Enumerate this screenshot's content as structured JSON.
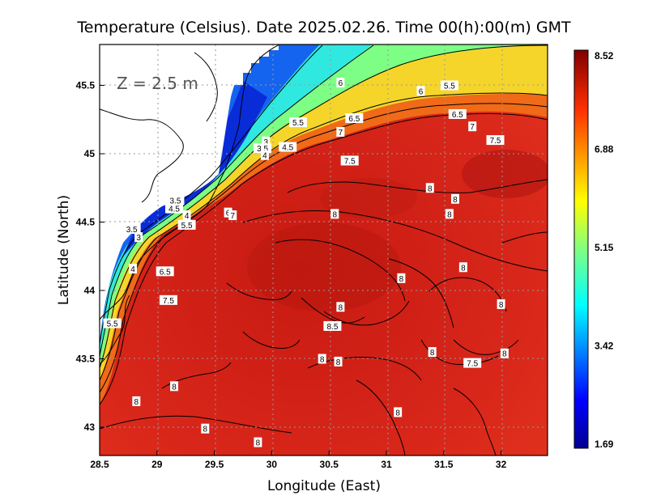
{
  "title": "Temperature (Celsius). Date 2025.02.26. Time 00(h):00(m) GMT",
  "depth_label": "Z = 2.5 m",
  "x_axis": {
    "label": "Longitude (East)",
    "ticks": [
      "28.5",
      "29",
      "29.5",
      "30",
      "30.5",
      "31",
      "31.5",
      "32"
    ],
    "tick_values": [
      28.5,
      29,
      29.5,
      30,
      30.5,
      31,
      31.5,
      32
    ],
    "range": [
      28.5,
      32.45
    ]
  },
  "y_axis": {
    "label": "Latitude (North)",
    "ticks": [
      "45.5",
      "45",
      "44.5",
      "44",
      "43.5",
      "43"
    ],
    "tick_values": [
      45.5,
      45,
      44.5,
      44,
      43.5,
      43
    ],
    "range": [
      42.8,
      45.8
    ]
  },
  "colorbar": {
    "ticks": [
      "8.52",
      "6.88",
      "5.15",
      "3.42",
      "1.69"
    ],
    "tick_values": [
      8.52,
      6.88,
      5.15,
      3.42,
      1.69
    ],
    "min": 1.69,
    "max": 8.52,
    "colormap": "jet"
  },
  "colors": {
    "sea_warm": "#d0241c",
    "sea_warmest": "#b5160f",
    "land": "#ffffff",
    "coast": "#000000",
    "grid": "#9a9a9a"
  },
  "contour_labels": [
    {
      "text": "6",
      "lon": 30.6,
      "lat": 45.52
    },
    {
      "text": "5.5",
      "lon": 31.55,
      "lat": 45.5
    },
    {
      "text": "6",
      "lon": 31.3,
      "lat": 45.46
    },
    {
      "text": "6.5",
      "lon": 30.72,
      "lat": 45.26
    },
    {
      "text": "6.5",
      "lon": 31.62,
      "lat": 45.29
    },
    {
      "text": "5.5",
      "lon": 30.23,
      "lat": 45.23
    },
    {
      "text": "7",
      "lon": 30.6,
      "lat": 45.16
    },
    {
      "text": "7",
      "lon": 31.75,
      "lat": 45.2
    },
    {
      "text": "7.5",
      "lon": 31.95,
      "lat": 45.1
    },
    {
      "text": "3",
      "lon": 29.95,
      "lat": 45.09
    },
    {
      "text": "3.5",
      "lon": 29.92,
      "lat": 45.04
    },
    {
      "text": "4",
      "lon": 29.94,
      "lat": 44.99
    },
    {
      "text": "4.5",
      "lon": 30.14,
      "lat": 45.05
    },
    {
      "text": "7.5",
      "lon": 30.68,
      "lat": 44.95
    },
    {
      "text": "8",
      "lon": 31.38,
      "lat": 44.75
    },
    {
      "text": "8",
      "lon": 31.6,
      "lat": 44.67
    },
    {
      "text": "3.5",
      "lon": 29.16,
      "lat": 44.66
    },
    {
      "text": "4.5",
      "lon": 29.15,
      "lat": 44.6
    },
    {
      "text": "4",
      "lon": 29.26,
      "lat": 44.55
    },
    {
      "text": "5.5",
      "lon": 29.26,
      "lat": 44.48
    },
    {
      "text": "6",
      "lon": 29.62,
      "lat": 44.57
    },
    {
      "text": "7",
      "lon": 29.66,
      "lat": 44.55
    },
    {
      "text": "8",
      "lon": 30.55,
      "lat": 44.56
    },
    {
      "text": "8",
      "lon": 31.55,
      "lat": 44.56
    },
    {
      "text": "3.5",
      "lon": 28.78,
      "lat": 44.45
    },
    {
      "text": "3",
      "lon": 28.84,
      "lat": 44.39
    },
    {
      "text": "4",
      "lon": 28.79,
      "lat": 44.16
    },
    {
      "text": "6.5",
      "lon": 29.07,
      "lat": 44.14
    },
    {
      "text": "8",
      "lon": 31.67,
      "lat": 44.17
    },
    {
      "text": "8",
      "lon": 31.13,
      "lat": 44.09
    },
    {
      "text": "7.5",
      "lon": 29.1,
      "lat": 43.93
    },
    {
      "text": "8",
      "lon": 30.6,
      "lat": 43.88
    },
    {
      "text": "8",
      "lon": 32.0,
      "lat": 43.9
    },
    {
      "text": "5.5",
      "lon": 28.61,
      "lat": 43.76
    },
    {
      "text": "8.5",
      "lon": 30.53,
      "lat": 43.74
    },
    {
      "text": "8",
      "lon": 31.4,
      "lat": 43.55
    },
    {
      "text": "8",
      "lon": 32.03,
      "lat": 43.54
    },
    {
      "text": "8",
      "lon": 30.44,
      "lat": 43.5
    },
    {
      "text": "8",
      "lon": 30.58,
      "lat": 43.48
    },
    {
      "text": "7.5",
      "lon": 31.75,
      "lat": 43.47
    },
    {
      "text": "8",
      "lon": 29.15,
      "lat": 43.3
    },
    {
      "text": "8",
      "lon": 28.82,
      "lat": 43.19
    },
    {
      "text": "8",
      "lon": 31.1,
      "lat": 43.11
    },
    {
      "text": "8",
      "lon": 29.42,
      "lat": 42.99
    },
    {
      "text": "8",
      "lon": 29.88,
      "lat": 42.89
    }
  ]
}
